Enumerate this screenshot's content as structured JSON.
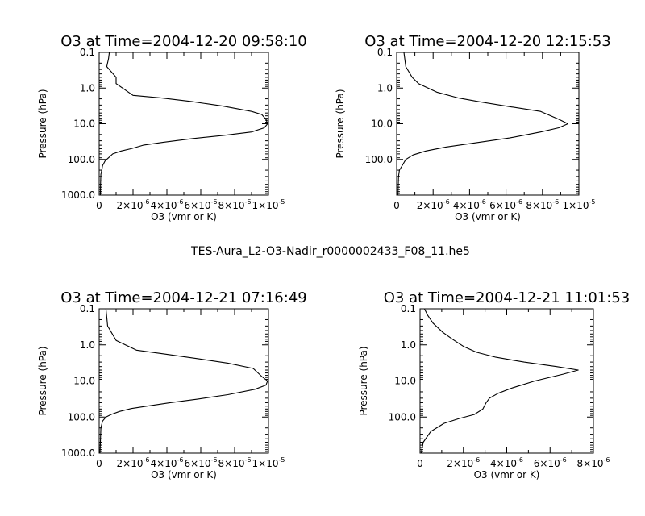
{
  "footer": "TES-Aura_L2-O3-Nadir_r0000002433_F08_11.he5",
  "chart_data": [
    {
      "type": "line",
      "title": "O3 at Time=2004-12-20 09:58:10",
      "xlabel": "O3 (vmr or K)",
      "ylabel": "Pressure (hPa)",
      "xlim": [
        0,
        1e-05
      ],
      "ylim": [
        1000,
        0.1
      ],
      "yscale": "log",
      "xticks": [
        {
          "v": 0,
          "m": "0",
          "e": ""
        },
        {
          "v": 2e-06,
          "m": "2×10",
          "e": "-6"
        },
        {
          "v": 4e-06,
          "m": "4×10",
          "e": "-6"
        },
        {
          "v": 6e-06,
          "m": "6×10",
          "e": "-6"
        },
        {
          "v": 8e-06,
          "m": "8×10",
          "e": "-6"
        },
        {
          "v": 1e-05,
          "m": "1×10",
          "e": "-5"
        }
      ],
      "yticks": [
        {
          "v": 0.1,
          "label": "0.1"
        },
        {
          "v": 1,
          "label": "1.0"
        },
        {
          "v": 10,
          "label": "10.0"
        },
        {
          "v": 100,
          "label": "100.0"
        },
        {
          "v": 1000,
          "label": "1000.0"
        }
      ],
      "x": [
        7e-08,
        8e-08,
        1e-07,
        1.5e-07,
        2e-07,
        3.5e-07,
        5.5e-07,
        8e-07,
        1.3e-06,
        1.9e-06,
        2.6e-06,
        3.8e-06,
        5.5e-06,
        7.4e-06,
        9e-06,
        9.75e-06,
        9.95e-06,
        9.85e-06,
        9.6e-06,
        9e-06,
        7.3e-06,
        5.5e-06,
        3.7e-06,
        2e-06,
        1e-06,
        1e-06,
        4.5e-07,
        5.5e-07,
        6e-07
      ],
      "y": [
        1000,
        500,
        260,
        200,
        150,
        110,
        90,
        70,
        58,
        50,
        40,
        33,
        26,
        21,
        17,
        13,
        10,
        7.5,
        5.5,
        4.5,
        3.2,
        2.4,
        1.9,
        1.6,
        0.75,
        0.5,
        0.25,
        0.15,
        0.1
      ]
    },
    {
      "type": "line",
      "title": "O3 at Time=2004-12-20 12:15:53",
      "xlabel": "O3 (vmr or K)",
      "ylabel": "Pressure (hPa)",
      "xlim": [
        0,
        1e-05
      ],
      "ylim": [
        1000,
        0.1
      ],
      "yscale": "log",
      "xticks": [
        {
          "v": 0,
          "m": "0",
          "e": ""
        },
        {
          "v": 2e-06,
          "m": "2×10",
          "e": "-6"
        },
        {
          "v": 4e-06,
          "m": "4×10",
          "e": "-6"
        },
        {
          "v": 6e-06,
          "m": "6×10",
          "e": "-6"
        },
        {
          "v": 8e-06,
          "m": "8×10",
          "e": "-6"
        },
        {
          "v": 1e-05,
          "m": "1×10",
          "e": "-5"
        }
      ],
      "yticks": [
        {
          "v": 0.1,
          "label": "0.1"
        },
        {
          "v": 1,
          "label": "1.0"
        },
        {
          "v": 10,
          "label": "10.0"
        },
        {
          "v": 100,
          "label": "100.0"
        }
      ],
      "x": [
        7e-08,
        1e-07,
        1.5e-07,
        3e-07,
        5e-07,
        9e-07,
        1.6e-06,
        2.7e-06,
        4.2e-06,
        6.2e-06,
        7.9e-06,
        8.9e-06,
        9.4e-06,
        8.9e-06,
        7.9e-06,
        6e-06,
        4.5e-06,
        3.4e-06,
        2.2e-06,
        1.2e-06,
        8.5e-07,
        5e-07,
        4e-07
      ],
      "y": [
        1000,
        300,
        200,
        150,
        100,
        75,
        58,
        45,
        35,
        25,
        17,
        13,
        10,
        7.5,
        4.5,
        3.2,
        2.4,
        1.9,
        1.3,
        0.75,
        0.5,
        0.25,
        0.1
      ]
    },
    {
      "type": "line",
      "title": "O3 at Time=2004-12-21 07:16:49",
      "xlabel": "O3 (vmr or K)",
      "ylabel": "Pressure (hPa)",
      "xlim": [
        0,
        1e-05
      ],
      "ylim": [
        1000,
        0.1
      ],
      "yscale": "log",
      "xticks": [
        {
          "v": 0,
          "m": "0",
          "e": ""
        },
        {
          "v": 2e-06,
          "m": "2×10",
          "e": "-6"
        },
        {
          "v": 4e-06,
          "m": "4×10",
          "e": "-6"
        },
        {
          "v": 6e-06,
          "m": "6×10",
          "e": "-6"
        },
        {
          "v": 8e-06,
          "m": "8×10",
          "e": "-6"
        },
        {
          "v": 1e-05,
          "m": "1×10",
          "e": "-5"
        }
      ],
      "yticks": [
        {
          "v": 0.1,
          "label": "0.1"
        },
        {
          "v": 1,
          "label": "1.0"
        },
        {
          "v": 10,
          "label": "10.0"
        },
        {
          "v": 100,
          "label": "100.0"
        },
        {
          "v": 1000,
          "label": "1000.0"
        }
      ],
      "x": [
        5e-08,
        7e-08,
        1e-07,
        2e-07,
        4e-07,
        7e-07,
        1.2e-06,
        1.9e-06,
        2.8e-06,
        4.2e-06,
        5.8e-06,
        7.6e-06,
        9.2e-06,
        9.85e-06,
        9.95e-06,
        9.6e-06,
        9.1e-06,
        7.6e-06,
        5.8e-06,
        3.9e-06,
        2.2e-06,
        1e-06,
        5e-07,
        4e-07
      ],
      "y": [
        1000,
        500,
        200,
        130,
        100,
        85,
        70,
        58,
        50,
        40,
        32,
        24,
        17,
        13,
        10,
        7.5,
        4.5,
        3.2,
        2.4,
        1.8,
        1.4,
        0.75,
        0.3,
        0.1
      ]
    },
    {
      "type": "line",
      "title": "O3 at Time=2004-12-21 11:01:53",
      "xlabel": "O3 (vmr or K)",
      "ylabel": "Pressure (hPa)",
      "xlim": [
        0,
        8e-06
      ],
      "ylim": [
        1000,
        0.1
      ],
      "yscale": "log",
      "xticks": [
        {
          "v": 0,
          "m": "0",
          "e": ""
        },
        {
          "v": 2e-06,
          "m": "2×10",
          "e": "-6"
        },
        {
          "v": 4e-06,
          "m": "4×10",
          "e": "-6"
        },
        {
          "v": 6e-06,
          "m": "6×10",
          "e": "-6"
        },
        {
          "v": 8e-06,
          "m": "8×10",
          "e": "-6"
        }
      ],
      "yticks": [
        {
          "v": 0.1,
          "label": "0.1"
        },
        {
          "v": 1,
          "label": "1.0"
        },
        {
          "v": 10,
          "label": "10.0"
        },
        {
          "v": 100,
          "label": "100.0"
        }
      ],
      "x": [
        5e-08,
        1.5e-07,
        5e-07,
        1.1e-06,
        1.8e-06,
        2.5e-06,
        2.9e-06,
        3.05e-06,
        3.2e-06,
        3.6e-06,
        4.2e-06,
        5.3e-06,
        6.6e-06,
        7.3e-06,
        6.3e-06,
        4.8e-06,
        3.5e-06,
        2.6e-06,
        2e-06,
        1.5e-06,
        1.05e-06,
        6e-07,
        3.5e-07,
        2e-07
      ],
      "y": [
        1000,
        500,
        250,
        150,
        110,
        85,
        60,
        40,
        30,
        22,
        16,
        10,
        6.5,
        5.0,
        4.0,
        3.0,
        2.2,
        1.6,
        1.1,
        0.7,
        0.45,
        0.25,
        0.15,
        0.1
      ]
    }
  ]
}
